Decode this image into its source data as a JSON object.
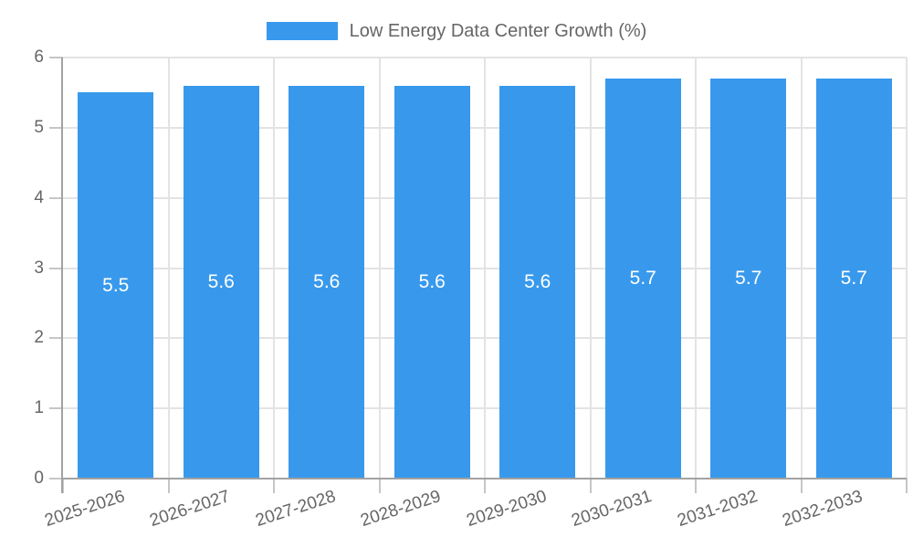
{
  "legend": {
    "series_label": "Low Energy Data Center Growth (%)"
  },
  "chart_data": {
    "type": "bar",
    "title": "Low Energy Data Center Growth (%)",
    "categories": [
      "2025-2026",
      "2026-2027",
      "2027-2028",
      "2028-2029",
      "2029-2030",
      "2030-2031",
      "2031-2032",
      "2032-2033"
    ],
    "values": [
      5.5,
      5.6,
      5.6,
      5.6,
      5.6,
      5.7,
      5.7,
      5.7
    ],
    "bar_labels": [
      "5.5",
      "5.6",
      "5.6",
      "5.6",
      "5.6",
      "5.7",
      "5.7",
      "5.7"
    ],
    "series": [
      {
        "name": "Low Energy Data Center Growth (%)",
        "values": [
          5.5,
          5.6,
          5.6,
          5.6,
          5.6,
          5.7,
          5.7,
          5.7
        ]
      }
    ],
    "xlabel": "",
    "ylabel": "",
    "ylim": [
      0,
      6
    ],
    "yticks": [
      0,
      1,
      2,
      3,
      4,
      5,
      6
    ],
    "grid": true,
    "legend_position": "top",
    "bar_color": "#3899ec",
    "bar_label_color": "#ffffff",
    "axis_text_color": "#666666",
    "grid_color": "#e3e3e3",
    "axis_line_color": "#a2a2a2",
    "tick_color": "#c6c6c6"
  }
}
